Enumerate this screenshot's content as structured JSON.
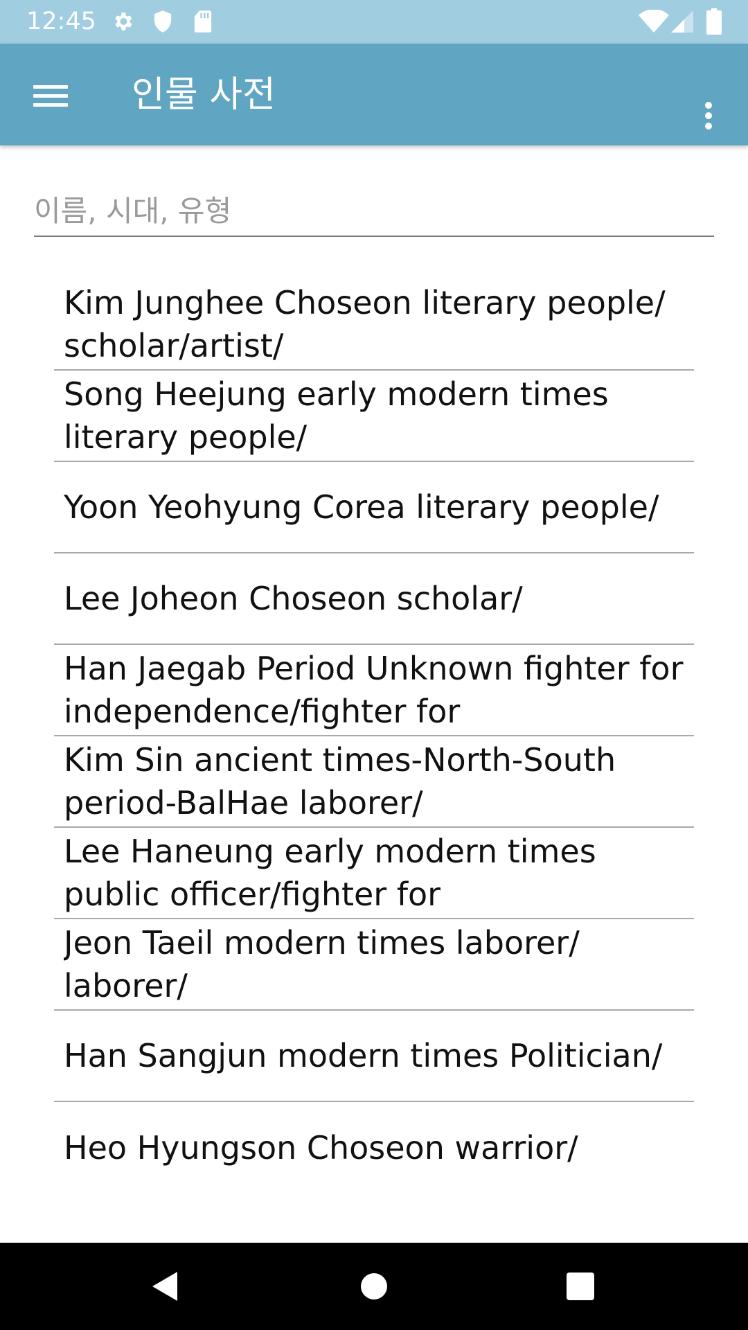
{
  "status_bar": {
    "time": "12:45",
    "icons": [
      "settings-icon",
      "shield-icon",
      "sd-card-icon",
      "wifi-icon",
      "signal-icon",
      "battery-icon"
    ]
  },
  "app_bar": {
    "title": "인물 사전",
    "menu_icon": "hamburger-menu-icon",
    "overflow_icon": "more-vert-icon"
  },
  "search": {
    "placeholder": "이름, 시대, 유형",
    "value": ""
  },
  "list": {
    "items": [
      {
        "text": "Kim Junghee Choseon literary people/ scholar/artist/"
      },
      {
        "text": "Song Heejung early modern times literary people/"
      },
      {
        "text": "Yoon Yeohyung Corea literary people/"
      },
      {
        "text": "Lee Joheon Choseon scholar/"
      },
      {
        "text": "Han Jaegab Period Unknown fighter for independence/fighter for"
      },
      {
        "text": "Kim Sin ancient times-North-South period-BalHae laborer/"
      },
      {
        "text": "Lee Haneung early modern times public officer/fighter for"
      },
      {
        "text": "Jeon Taeil modern times laborer/ laborer/"
      },
      {
        "text": "Han Sangjun modern times Politician/"
      },
      {
        "text": "Heo Hyungson Choseon warrior/"
      }
    ]
  },
  "nav_bar": {
    "buttons": [
      "back-icon",
      "home-icon",
      "recents-icon"
    ]
  },
  "colors": {
    "status_bar": "#a0cde0",
    "app_bar": "#60a5c1",
    "nav_bar": "#000000",
    "divider": "#a9a9a9"
  }
}
